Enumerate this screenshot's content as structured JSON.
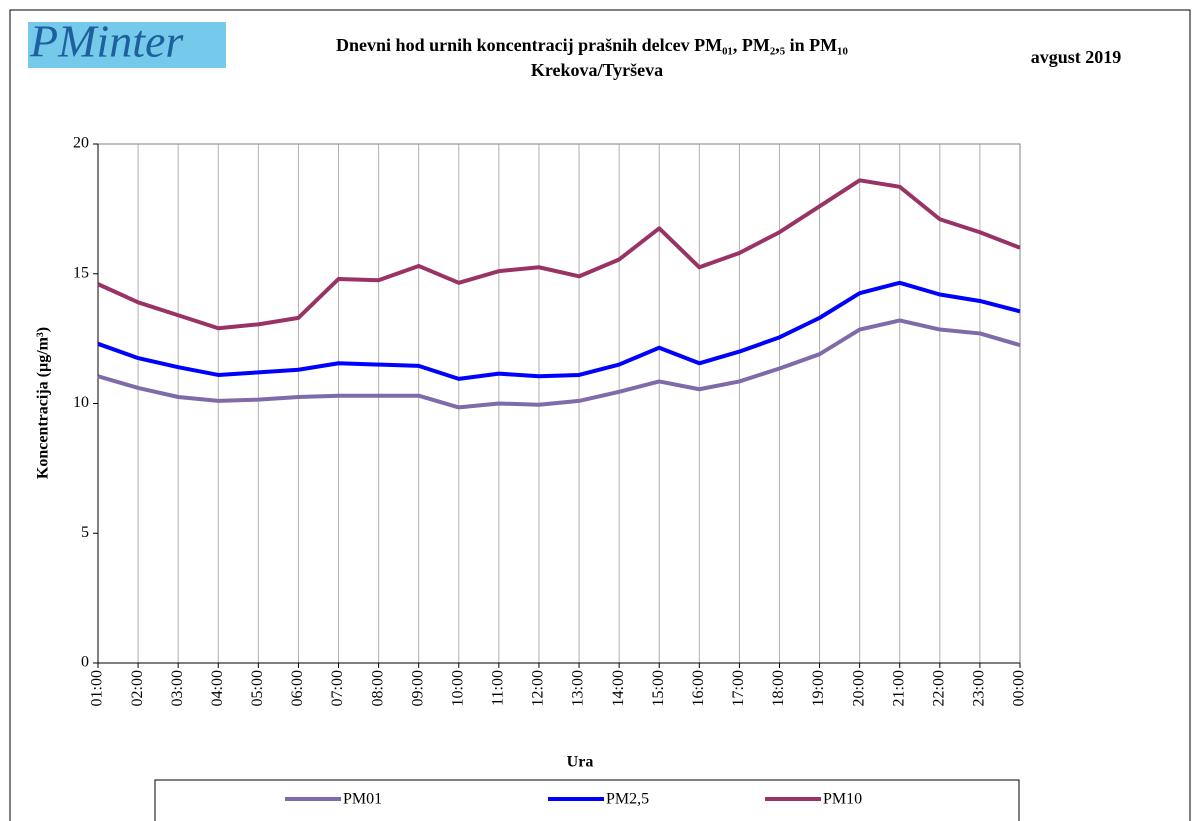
{
  "chart_data": {
    "type": "line",
    "logo": "PMinter",
    "title": "Dnevni hod urnih koncentracij prašnih delcev PM₀₁, PM₂,₅ in PM₁₀",
    "subtitle": "Krekova/Tyrševa",
    "date": "avgust 2019",
    "x_label": "Ura",
    "y_label": "Koncentracija (µg/m³)",
    "categories": [
      "01:00",
      "02:00",
      "03:00",
      "04:00",
      "05:00",
      "06:00",
      "07:00",
      "08:00",
      "09:00",
      "10:00",
      "11:00",
      "12:00",
      "13:00",
      "14:00",
      "15:00",
      "16:00",
      "17:00",
      "18:00",
      "19:00",
      "20:00",
      "21:00",
      "22:00",
      "23:00",
      "00:00"
    ],
    "series": [
      {
        "name": "PM01",
        "color": "#7f6aaa",
        "values": [
          11.05,
          10.6,
          10.25,
          10.1,
          10.15,
          10.25,
          10.3,
          10.3,
          10.3,
          9.85,
          10.0,
          9.95,
          10.1,
          10.45,
          10.85,
          10.55,
          10.85,
          11.35,
          11.9,
          12.85,
          13.2,
          12.85,
          12.7,
          12.25
        ]
      },
      {
        "name": "PM2,5",
        "color": "#0000ff",
        "values": [
          12.3,
          11.75,
          11.4,
          11.1,
          11.2,
          11.3,
          11.55,
          11.5,
          11.45,
          10.95,
          11.15,
          11.05,
          11.1,
          11.5,
          12.15,
          11.55,
          12.0,
          12.55,
          13.3,
          14.25,
          14.65,
          14.2,
          13.95,
          13.55
        ]
      },
      {
        "name": "PM10",
        "color": "#993366",
        "values": [
          14.6,
          13.9,
          13.4,
          12.9,
          13.05,
          13.3,
          14.8,
          14.75,
          15.3,
          14.65,
          15.1,
          15.25,
          14.9,
          15.55,
          16.75,
          15.25,
          15.8,
          16.6,
          17.6,
          18.6,
          18.35,
          17.1,
          16.6,
          16.0
        ]
      }
    ],
    "ylim": [
      0,
      20
    ],
    "yticks": [
      0,
      5,
      10,
      15,
      20
    ],
    "xgrid": true,
    "legend": "bottom"
  }
}
